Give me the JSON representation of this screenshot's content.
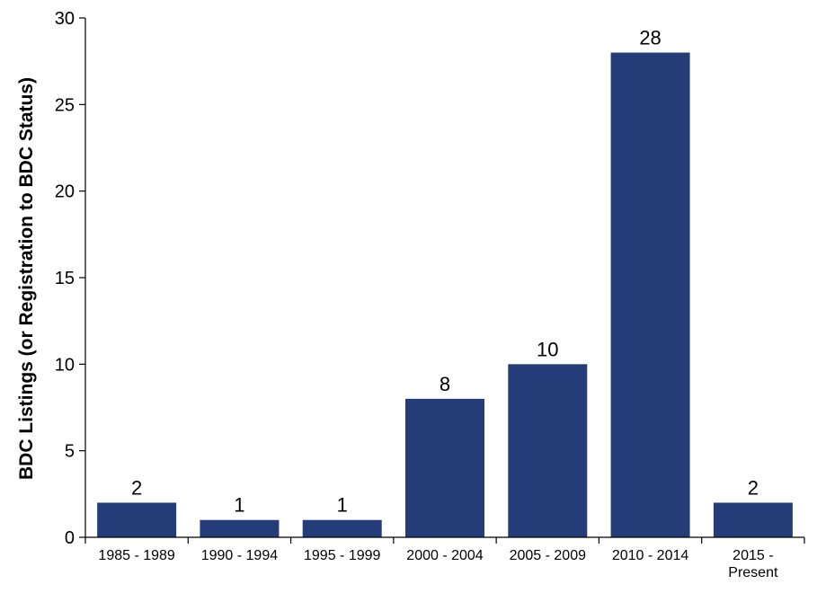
{
  "chart_data": {
    "type": "bar",
    "title": "",
    "xlabel": "",
    "ylabel": "BDC Listings (or Registration to BDC Status)",
    "categories": [
      [
        "1985 - 1989"
      ],
      [
        "1990 - 1994"
      ],
      [
        "1995 - 1999"
      ],
      [
        "2000 - 2004"
      ],
      [
        "2005 - 2009"
      ],
      [
        "2010 - 2014"
      ],
      [
        "2015 -",
        "Present"
      ]
    ],
    "values": [
      2,
      1,
      1,
      8,
      10,
      28,
      2
    ],
    "data_labels": [
      "2",
      "1",
      "1",
      "8",
      "10",
      "28",
      "2"
    ],
    "ylim": [
      0,
      30
    ],
    "yticks": [
      0,
      5,
      10,
      15,
      20,
      25,
      30
    ],
    "ytick_labels": [
      "0",
      "5",
      "10",
      "15",
      "20",
      "25",
      "30"
    ],
    "grid": false,
    "legend": "none",
    "colors": {
      "bar": "#243c78",
      "axis": "#000000"
    }
  }
}
